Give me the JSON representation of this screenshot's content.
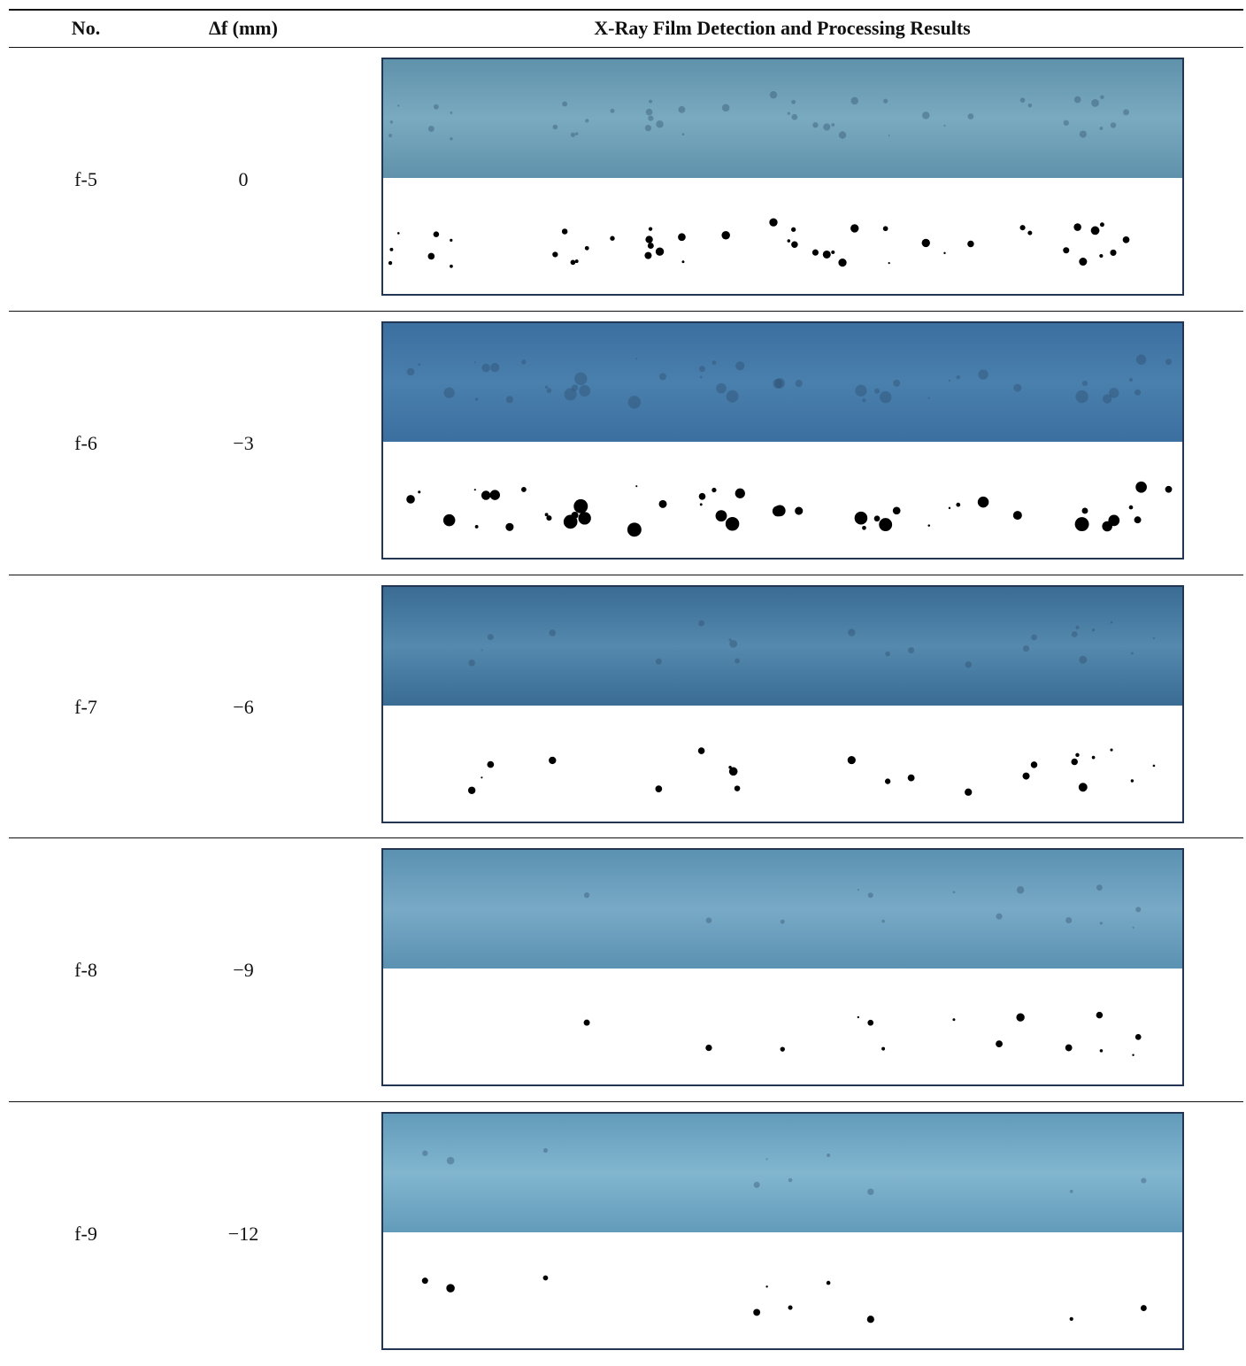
{
  "table": {
    "header": [
      "No.",
      "Δf (mm)",
      "X-Ray Film Detection and Processing Results"
    ],
    "rows": [
      [
        "f-5",
        "0"
      ],
      [
        "f-6",
        "−3"
      ],
      [
        "f-7",
        "−6"
      ],
      [
        "f-8",
        "−9"
      ],
      [
        "f-9",
        "−12"
      ]
    ]
  }
}
